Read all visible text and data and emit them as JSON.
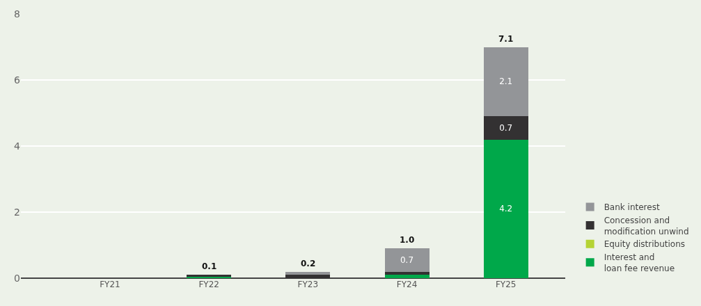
{
  "chart_data": {
    "type": "bar",
    "stacked": true,
    "categories": [
      "FY21",
      "FY22",
      "FY23",
      "FY24",
      "FY25"
    ],
    "series": [
      {
        "name": "Interest and\nloan fee revenue",
        "color": "#00a84a",
        "values": [
          0,
          0.06,
          0,
          0.1,
          4.2
        ],
        "value_labels": [
          null,
          null,
          null,
          null,
          "4.2"
        ]
      },
      {
        "name": "Equity distributions",
        "color": "#b5d334",
        "values": [
          0,
          0,
          0,
          0,
          0
        ],
        "value_labels": [
          null,
          null,
          null,
          null,
          null
        ]
      },
      {
        "name": "Concession and\nmodification unwind",
        "color": "#333132",
        "values": [
          0,
          0.04,
          0.11,
          0.1,
          0.7
        ],
        "value_labels": [
          null,
          null,
          null,
          null,
          "0.7"
        ]
      },
      {
        "name": "Bank interest",
        "color": "#939598",
        "values": [
          0,
          0,
          0.09,
          0.7,
          2.1
        ],
        "value_labels": [
          null,
          null,
          null,
          "0.7",
          "2.1"
        ]
      }
    ],
    "totals": [
      null,
      "0.1",
      "0.2",
      "1.0",
      "7.1"
    ],
    "ylim": [
      0,
      8
    ],
    "yticks": [
      0,
      2,
      4,
      6,
      8
    ],
    "grid": "y",
    "legend": "bottom right"
  }
}
